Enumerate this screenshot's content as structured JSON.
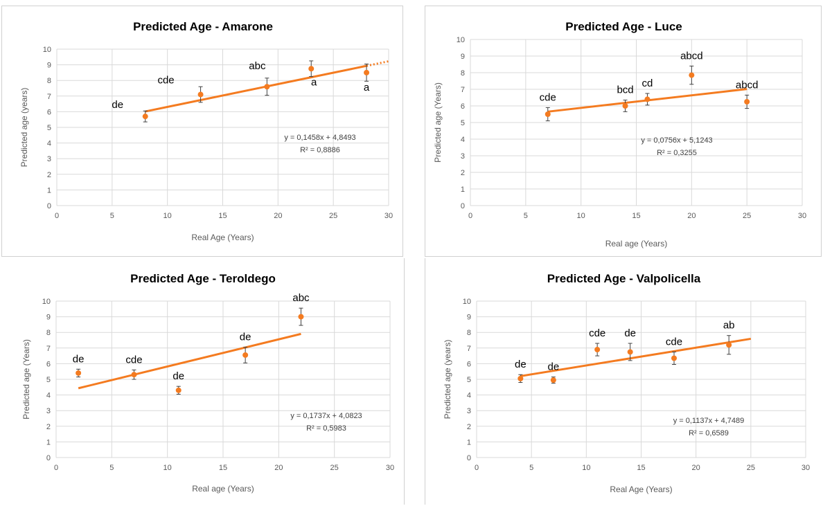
{
  "colors": {
    "marker": "#f47b20",
    "trend": "#f47b20",
    "grid": "#d9d9d9",
    "error_bar": "#404040"
  },
  "chart_data": [
    {
      "type": "scatter",
      "title": "Predicted Age - Amarone",
      "xlabel": "Real Age (Years)",
      "ylabel": "Predicted age (years)",
      "xlim": [
        0,
        30
      ],
      "ylim": [
        0,
        10
      ],
      "xticks": [
        0,
        5,
        10,
        15,
        20,
        25,
        30
      ],
      "yticks": [
        0,
        1,
        2,
        3,
        4,
        5,
        6,
        7,
        8,
        9,
        10
      ],
      "grid": true,
      "points": [
        {
          "x": 8,
          "y": 5.7,
          "err": 0.35,
          "label": "de"
        },
        {
          "x": 13,
          "y": 7.1,
          "err": 0.5,
          "label": "cde"
        },
        {
          "x": 19,
          "y": 7.6,
          "err": 0.55,
          "label": "abc"
        },
        {
          "x": 23,
          "y": 8.75,
          "err": 0.5,
          "label": "a"
        },
        {
          "x": 28,
          "y": 8.5,
          "err": 0.55,
          "label": "a"
        }
      ],
      "trendline": {
        "slope": 0.1458,
        "intercept": 4.8493,
        "x_start": 8,
        "x_end": 28,
        "forecast_to": 30
      },
      "equation": "y = 0,1458x + 4,8493",
      "r2": "R² = 0,8886"
    },
    {
      "type": "scatter",
      "title": "Predicted Age - Luce",
      "xlabel": "Real age (Years)",
      "ylabel": "Predicted age (Years)",
      "xlim": [
        0,
        30
      ],
      "ylim": [
        0,
        10
      ],
      "xticks": [
        0,
        5,
        10,
        15,
        20,
        25,
        30
      ],
      "yticks": [
        0,
        1,
        2,
        3,
        4,
        5,
        6,
        7,
        8,
        9,
        10
      ],
      "grid": true,
      "points": [
        {
          "x": 7,
          "y": 5.5,
          "err": 0.4,
          "label": "cde"
        },
        {
          "x": 14,
          "y": 6.0,
          "err": 0.35,
          "label": "bcd"
        },
        {
          "x": 16,
          "y": 6.4,
          "err": 0.35,
          "label": "cd"
        },
        {
          "x": 20,
          "y": 7.85,
          "err": 0.55,
          "label": "abcd"
        },
        {
          "x": 25,
          "y": 6.25,
          "err": 0.4,
          "label": "abcd"
        }
      ],
      "trendline": {
        "slope": 0.0756,
        "intercept": 5.1243,
        "x_start": 7,
        "x_end": 25
      },
      "equation": "y = 0,0756x + 5,1243",
      "r2": "R² = 0,3255"
    },
    {
      "type": "scatter",
      "title": "Predicted Age - Teroldego",
      "xlabel": "Real age (Years)",
      "ylabel": "Predicted age (Years)",
      "xlim": [
        0,
        30
      ],
      "ylim": [
        0,
        10
      ],
      "xticks": [
        0,
        5,
        10,
        15,
        20,
        25,
        30
      ],
      "yticks": [
        0,
        1,
        2,
        3,
        4,
        5,
        6,
        7,
        8,
        9,
        10
      ],
      "grid": true,
      "points": [
        {
          "x": 2,
          "y": 5.4,
          "err": 0.25,
          "label": "de"
        },
        {
          "x": 7,
          "y": 5.3,
          "err": 0.3,
          "label": "cde"
        },
        {
          "x": 11,
          "y": 4.3,
          "err": 0.25,
          "label": "de"
        },
        {
          "x": 17,
          "y": 6.55,
          "err": 0.5,
          "label": "de"
        },
        {
          "x": 22,
          "y": 9.0,
          "err": 0.55,
          "label": "abc"
        }
      ],
      "trendline": {
        "slope": 0.1737,
        "intercept": 4.0823,
        "x_start": 2,
        "x_end": 22
      },
      "equation": "y = 0,1737x + 4,0823",
      "r2": "R² = 0,5983"
    },
    {
      "type": "scatter",
      "title": "Predicted Age - Valpolicella",
      "xlabel": "Real Age (Years)",
      "ylabel": "Predicted age (years)",
      "xlim": [
        0,
        30
      ],
      "ylim": [
        0,
        10
      ],
      "xticks": [
        0,
        5,
        10,
        15,
        20,
        25,
        30
      ],
      "yticks": [
        0,
        1,
        2,
        3,
        4,
        5,
        6,
        7,
        8,
        9,
        10
      ],
      "grid": true,
      "points": [
        {
          "x": 4,
          "y": 5.05,
          "err": 0.25,
          "label": "de"
        },
        {
          "x": 7,
          "y": 4.95,
          "err": 0.2,
          "label": "de"
        },
        {
          "x": 11,
          "y": 6.9,
          "err": 0.4,
          "label": "cde"
        },
        {
          "x": 14,
          "y": 6.75,
          "err": 0.55,
          "label": "de"
        },
        {
          "x": 18,
          "y": 6.35,
          "err": 0.4,
          "label": "cde"
        },
        {
          "x": 23,
          "y": 7.2,
          "err": 0.6,
          "label": "ab"
        }
      ],
      "trendline": {
        "slope": 0.1137,
        "intercept": 4.7489,
        "x_start": 4,
        "x_end": 25
      },
      "equation": "y = 0,1137x + 4,7489",
      "r2": "R² = 0,6589"
    }
  ]
}
